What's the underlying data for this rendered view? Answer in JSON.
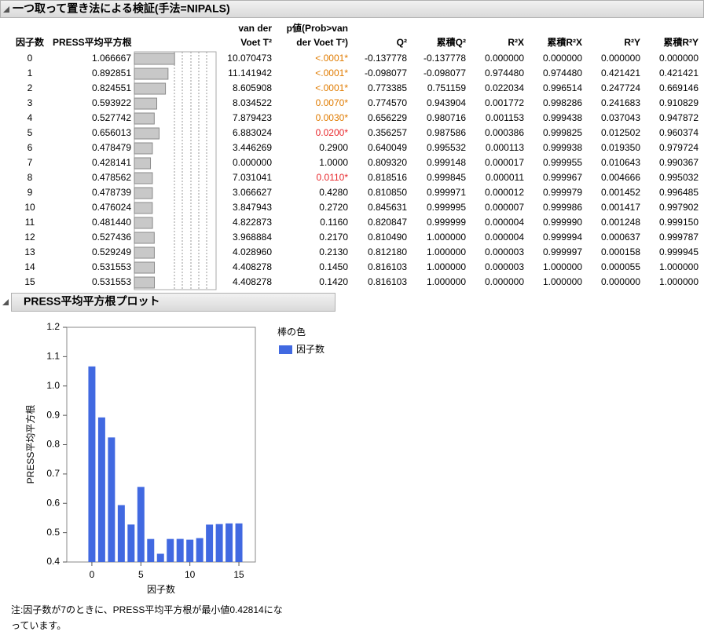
{
  "report_title": "一つ取って置き法による検証(手法=NIPALS)",
  "table": {
    "headers": [
      [
        "因子数"
      ],
      [
        "PRESS平均平方根"
      ],
      [
        "van der",
        "Voet T²"
      ],
      [
        "p値(Prob>van",
        "der Voet T²)"
      ],
      [
        "Q²"
      ],
      [
        "累積Q²"
      ],
      [
        "R²X"
      ],
      [
        "累積R²X"
      ],
      [
        "R²Y"
      ],
      [
        "累積R²Y"
      ]
    ],
    "rows": [
      [
        "0",
        "1.066667",
        "10.070473",
        "<.0001*",
        "-0.137778",
        "-0.137778",
        "0.000000",
        "0.000000",
        "0.000000",
        "0.000000"
      ],
      [
        "1",
        "0.892851",
        "11.141942",
        "<.0001*",
        "-0.098077",
        "-0.098077",
        "0.974480",
        "0.974480",
        "0.421421",
        "0.421421"
      ],
      [
        "2",
        "0.824551",
        "8.605908",
        "<.0001*",
        "0.773385",
        "0.751159",
        "0.022034",
        "0.996514",
        "0.247724",
        "0.669146"
      ],
      [
        "3",
        "0.593922",
        "8.034522",
        "0.0070*",
        "0.774570",
        "0.943904",
        "0.001772",
        "0.998286",
        "0.241683",
        "0.910829"
      ],
      [
        "4",
        "0.527742",
        "7.879423",
        "0.0030*",
        "0.656229",
        "0.980716",
        "0.001153",
        "0.999438",
        "0.037043",
        "0.947872"
      ],
      [
        "5",
        "0.656013",
        "6.883024",
        "0.0200*",
        "0.356257",
        "0.987586",
        "0.000386",
        "0.999825",
        "0.012502",
        "0.960374"
      ],
      [
        "6",
        "0.478479",
        "3.446269",
        "0.2900",
        "0.640049",
        "0.995532",
        "0.000113",
        "0.999938",
        "0.019350",
        "0.979724"
      ],
      [
        "7",
        "0.428141",
        "0.000000",
        "1.0000",
        "0.809320",
        "0.999148",
        "0.000017",
        "0.999955",
        "0.010643",
        "0.990367"
      ],
      [
        "8",
        "0.478562",
        "7.031041",
        "0.0110*",
        "0.818516",
        "0.999845",
        "0.000011",
        "0.999967",
        "0.004666",
        "0.995032"
      ],
      [
        "9",
        "0.478739",
        "3.066627",
        "0.4280",
        "0.810850",
        "0.999971",
        "0.000012",
        "0.999979",
        "0.001452",
        "0.996485"
      ],
      [
        "10",
        "0.476024",
        "3.847943",
        "0.2720",
        "0.845631",
        "0.999995",
        "0.000007",
        "0.999986",
        "0.001417",
        "0.997902"
      ],
      [
        "11",
        "0.481440",
        "4.822873",
        "0.1160",
        "0.820847",
        "0.999999",
        "0.000004",
        "0.999990",
        "0.001248",
        "0.999150"
      ],
      [
        "12",
        "0.527436",
        "3.968884",
        "0.2170",
        "0.810490",
        "1.000000",
        "0.000004",
        "0.999994",
        "0.000637",
        "0.999787"
      ],
      [
        "13",
        "0.529249",
        "4.028960",
        "0.2130",
        "0.812180",
        "1.000000",
        "0.000003",
        "0.999997",
        "0.000158",
        "0.999945"
      ],
      [
        "14",
        "0.531553",
        "4.408278",
        "0.1450",
        "0.816103",
        "1.000000",
        "0.000003",
        "1.000000",
        "0.000055",
        "1.000000"
      ],
      [
        "15",
        "0.531553",
        "4.408278",
        "0.1420",
        "0.816103",
        "1.000000",
        "0.000000",
        "1.000000",
        "0.000000",
        "1.000000"
      ]
    ],
    "p_colors": [
      "#e07b00",
      "#e07b00",
      "#e07b00",
      "#e07b00",
      "#e07b00",
      "#e8262a",
      "#000000",
      "#000000",
      "#e8262a",
      "#000000",
      "#000000",
      "#000000",
      "#000000",
      "#000000",
      "#000000",
      "#000000"
    ]
  },
  "plot_title": "PRESS平均平方根プロット",
  "chart_data": {
    "type": "bar",
    "x": [
      0,
      1,
      2,
      3,
      4,
      5,
      6,
      7,
      8,
      9,
      10,
      11,
      12,
      13,
      14,
      15
    ],
    "series": [
      {
        "name": "因子数",
        "color": "#4169e1",
        "values": [
          1.066667,
          0.892851,
          0.824551,
          0.593922,
          0.527742,
          0.656013,
          0.478479,
          0.428141,
          0.478562,
          0.478739,
          0.476024,
          0.48144,
          0.527436,
          0.529249,
          0.531553,
          0.531553
        ]
      }
    ],
    "legend_title": "棒の色",
    "x_label": "因子数",
    "y_label": "PRESS平均平方根",
    "xlim": [
      -2.56,
      16.68
    ],
    "xticks": [
      0,
      5,
      10,
      15
    ],
    "ylim": [
      0.4,
      1.2
    ],
    "yticks": [
      0.4,
      0.5,
      0.6,
      0.7,
      0.8,
      0.9,
      {
        "value": 1,
        "label": "1.0"
      },
      1.1,
      1.2
    ]
  },
  "note": [
    "注:因子数が7のときに、PRESS平均平方根が最小値0.42814にな",
    "っています。"
  ]
}
